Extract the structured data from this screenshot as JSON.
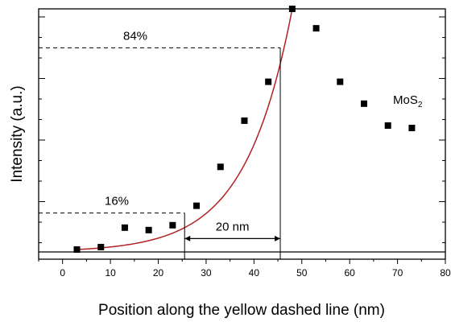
{
  "chart_data": {
    "type": "scatter",
    "xlabel": "Position along the yellow dashed line  (nm)",
    "ylabel": "Intensity  (a.u.)",
    "xlim": [
      -5,
      80
    ],
    "ylim": [
      0,
      1
    ],
    "x_ticks": [
      0,
      10,
      20,
      30,
      40,
      50,
      60,
      70,
      80
    ],
    "y_axis_tick_labels": "none",
    "grid": false,
    "series": [
      {
        "name": "MoS",
        "name_subscript": "2",
        "marker": "square",
        "color": "#000000",
        "x": [
          3,
          8,
          13,
          18,
          23,
          28,
          33,
          38,
          43,
          48,
          53,
          58,
          63,
          68,
          73
        ],
        "y": [
          0.01,
          0.02,
          0.1,
          0.09,
          0.11,
          0.19,
          0.35,
          0.54,
          0.7,
          1.0,
          0.92,
          0.7,
          0.61,
          0.52,
          0.51
        ]
      }
    ],
    "fit_curve": {
      "type": "exponential",
      "color": "#b22222",
      "x_range": [
        3,
        48
      ],
      "y0": 0.01,
      "y_end": 1.0
    },
    "baseline": {
      "y": 0
    },
    "annotations": {
      "level_high": {
        "label": "84%",
        "y": 0.84,
        "x": 45.5
      },
      "level_low": {
        "label": "16%",
        "y": 0.16,
        "x": 25.5
      },
      "width": {
        "label": "20 nm",
        "x_from": 25.5,
        "x_to": 45.5
      }
    }
  }
}
